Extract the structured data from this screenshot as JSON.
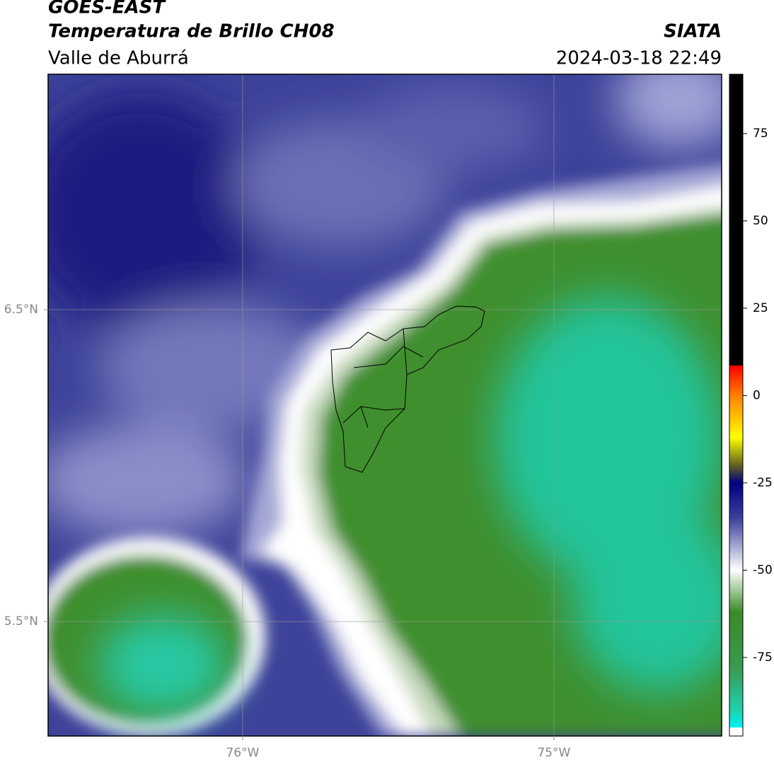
{
  "header": {
    "title": "GOES-EAST",
    "subtitle": "Temperatura de Brillo CH08",
    "region": "Valle de Aburrá",
    "source": "SIATA",
    "datetime": "2024-03-18 22:49"
  },
  "map": {
    "xlim": [
      -76.625,
      -74.461
    ],
    "ylim": [
      5.133,
      7.255
    ],
    "xticks": [
      {
        "value": -76,
        "label": "76°W"
      },
      {
        "value": -75,
        "label": "75°W"
      }
    ],
    "yticks": [
      {
        "value": 6.5,
        "label": "6.5°N"
      },
      {
        "value": 5.5,
        "label": "5.5°N"
      }
    ],
    "grid": true
  },
  "colorbar": {
    "range": [
      -97.5,
      92
    ],
    "ticks": [
      75,
      50,
      25,
      0,
      -25,
      -50,
      -75
    ],
    "colors": [
      {
        "value": 92,
        "color": "#000000"
      },
      {
        "value": 8.7,
        "color": "#000000"
      },
      {
        "value": 8.5,
        "color": "#ff0000"
      },
      {
        "value": 0,
        "color": "#ff8000"
      },
      {
        "value": -12,
        "color": "#ffff00"
      },
      {
        "value": -20,
        "color": "#606020"
      },
      {
        "value": -25,
        "color": "#000080"
      },
      {
        "value": -35,
        "color": "#3a3f9c"
      },
      {
        "value": -50,
        "color": "#ffffff"
      },
      {
        "value": -62,
        "color": "#3a8a28"
      },
      {
        "value": -78,
        "color": "#3a9a50"
      },
      {
        "value": -90,
        "color": "#20d0b0"
      },
      {
        "value": -95,
        "color": "#00f0f0"
      },
      {
        "value": -95.1,
        "color": "#ffffff"
      },
      {
        "value": -97.5,
        "color": "#ffffff"
      }
    ]
  }
}
